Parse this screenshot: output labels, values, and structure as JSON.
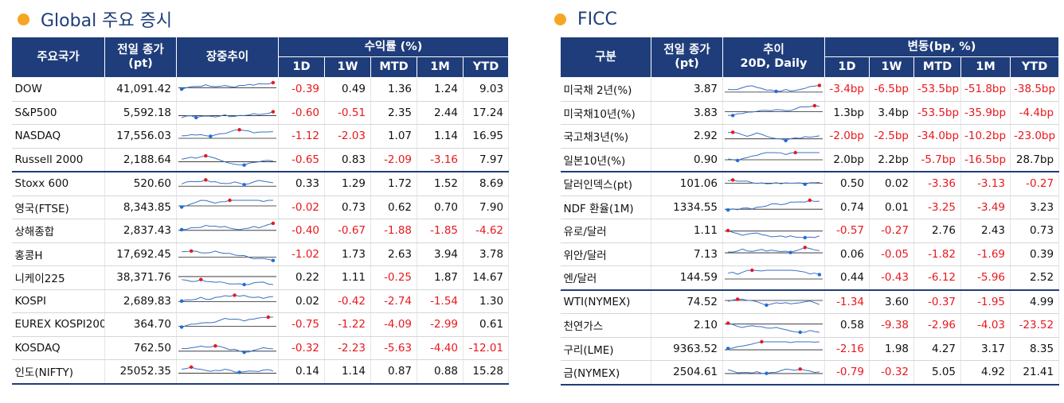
{
  "left": {
    "title": "Global 주요 증시",
    "headers": {
      "country": "주요국가",
      "close": "전일 종가",
      "close_unit": "(pt)",
      "trend": "장중추이",
      "returns": "수익률 (%)"
    },
    "cols": [
      "1D",
      "1W",
      "MTD",
      "1M",
      "YTD"
    ],
    "rows": [
      {
        "name": "DOW",
        "close": "41,091.42",
        "v": [
          "-0.39",
          "0.49",
          "1.36",
          "1.24",
          "9.03"
        ]
      },
      {
        "name": "S&P500",
        "close": "5,592.18",
        "v": [
          "-0.60",
          "-0.51",
          "2.35",
          "2.44",
          "17.24"
        ]
      },
      {
        "name": "NASDAQ",
        "close": "17,556.03",
        "v": [
          "-1.12",
          "-2.03",
          "1.07",
          "1.14",
          "16.95"
        ]
      },
      {
        "name": "Russell 2000",
        "close": "2,188.64",
        "v": [
          "-0.65",
          "0.83",
          "-2.09",
          "-3.16",
          "7.97"
        ]
      },
      {
        "name": "Stoxx 600",
        "close": "520.60",
        "v": [
          "0.33",
          "1.29",
          "1.72",
          "1.52",
          "8.69"
        ]
      },
      {
        "name": "영국(FTSE)",
        "close": "8,343.85",
        "v": [
          "-0.02",
          "0.73",
          "0.62",
          "0.70",
          "7.90"
        ]
      },
      {
        "name": "상해종합",
        "close": "2,837.43",
        "v": [
          "-0.40",
          "-0.67",
          "-1.88",
          "-1.85",
          "-4.62"
        ]
      },
      {
        "name": "홍콩H",
        "close": "17,692.45",
        "v": [
          "-1.02",
          "1.73",
          "2.63",
          "3.94",
          "3.78"
        ]
      },
      {
        "name": "니케이225",
        "close": "38,371.76",
        "v": [
          "0.22",
          "1.11",
          "-0.25",
          "1.87",
          "14.67"
        ]
      },
      {
        "name": "KOSPI",
        "close": "2,689.83",
        "v": [
          "0.02",
          "-0.42",
          "-2.74",
          "-1.54",
          "1.30"
        ]
      },
      {
        "name": "EUREX KOSPI200",
        "close": "364.70",
        "v": [
          "-0.75",
          "-1.22",
          "-4.09",
          "-2.99",
          "0.61"
        ]
      },
      {
        "name": "KOSDAQ",
        "close": "762.50",
        "v": [
          "-0.32",
          "-2.23",
          "-5.63",
          "-4.40",
          "-12.01"
        ]
      },
      {
        "name": "인도(NIFTY)",
        "close": "25052.35",
        "v": [
          "0.14",
          "1.14",
          "0.87",
          "0.88",
          "15.28"
        ]
      }
    ]
  },
  "right": {
    "title": "FICC",
    "headers": {
      "cat": "구분",
      "close": "전일 종가",
      "close_unit": "(pt)",
      "trend": "추이",
      "trend_sub": "20D, Daily",
      "change": "변동(bp, %)"
    },
    "cols": [
      "1D",
      "1W",
      "MTD",
      "1M",
      "YTD"
    ],
    "rows": [
      {
        "name": "미국채 2년(%)",
        "close": "3.87",
        "v": [
          "-3.4bp",
          "-6.5bp",
          "-53.5bp",
          "-51.8bp",
          "-38.5bp"
        ]
      },
      {
        "name": "미국채10년(%)",
        "close": "3.83",
        "v": [
          "1.3bp",
          "3.4bp",
          "-53.5bp",
          "-35.9bp",
          "-4.4bp"
        ]
      },
      {
        "name": "국고채3년(%)",
        "close": "2.92",
        "v": [
          "-2.0bp",
          "-2.5bp",
          "-34.0bp",
          "-10.2bp",
          "-23.0bp"
        ]
      },
      {
        "name": "일본10년(%)",
        "close": "0.90",
        "v": [
          "2.0bp",
          "2.2bp",
          "-5.7bp",
          "-16.5bp",
          "28.7bp"
        ]
      },
      {
        "name": "달러인덱스(pt)",
        "close": "101.06",
        "v": [
          "0.50",
          "0.02",
          "-3.36",
          "-3.13",
          "-0.27"
        ]
      },
      {
        "name": "NDF 환율(1M)",
        "close": "1334.55",
        "v": [
          "0.74",
          "0.01",
          "-3.25",
          "-3.49",
          "3.23"
        ]
      },
      {
        "name": "유로/달러",
        "close": "1.11",
        "v": [
          "-0.57",
          "-0.27",
          "2.76",
          "2.43",
          "0.73"
        ]
      },
      {
        "name": "위안/달러",
        "close": "7.13",
        "v": [
          "0.06",
          "-0.05",
          "-1.82",
          "-1.69",
          "0.39"
        ]
      },
      {
        "name": "엔/달러",
        "close": "144.59",
        "v": [
          "0.44",
          "-0.43",
          "-6.12",
          "-5.96",
          "2.52"
        ]
      },
      {
        "name": "WTI(NYMEX)",
        "close": "74.52",
        "v": [
          "-1.34",
          "3.60",
          "-0.37",
          "-1.95",
          "4.99"
        ]
      },
      {
        "name": "천연가스",
        "close": "2.10",
        "v": [
          "0.58",
          "-9.38",
          "-2.96",
          "-4.03",
          "-23.52"
        ]
      },
      {
        "name": "구리(LME)",
        "close": "9363.52",
        "v": [
          "-2.16",
          "1.98",
          "4.27",
          "3.17",
          "8.35"
        ]
      },
      {
        "name": "금(NYMEX)",
        "close": "2504.61",
        "v": [
          "-0.79",
          "-0.32",
          "5.05",
          "4.92",
          "21.41"
        ]
      }
    ]
  },
  "colors": {
    "header": "#1f3d7a",
    "negative": "#e8181d",
    "spark_line": "#3a6fc4",
    "spark_max": "#e8181d",
    "spark_min": "#1f6fd6",
    "bullet": "#f5a623"
  }
}
